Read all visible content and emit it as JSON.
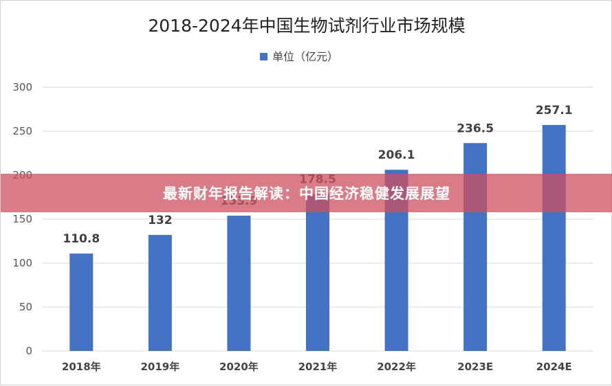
{
  "chart_data": {
    "type": "bar",
    "title": "2018-2024年中国生物试剂行业市场规模",
    "categories": [
      "2018年",
      "2019年",
      "2020年",
      "2021年",
      "2022年",
      "2023E",
      "2024E"
    ],
    "series": [
      {
        "name": "单位（亿元）",
        "values": [
          110.8,
          132,
          153.9,
          178.5,
          206.1,
          236.5,
          257.1
        ],
        "color": "#4472C4"
      }
    ],
    "data_labels": [
      "110.8",
      "132",
      "153.9",
      "178.5",
      "206.1",
      "236.5",
      "257.1"
    ],
    "ylim": [
      0,
      300
    ],
    "yticks": [
      0,
      50,
      100,
      150,
      200,
      250,
      300
    ],
    "grid": true,
    "legend_position": "top-center"
  },
  "banner": {
    "text": "最新财年报告解读：中国经济稳健发展展望",
    "color": "#CD505F"
  }
}
